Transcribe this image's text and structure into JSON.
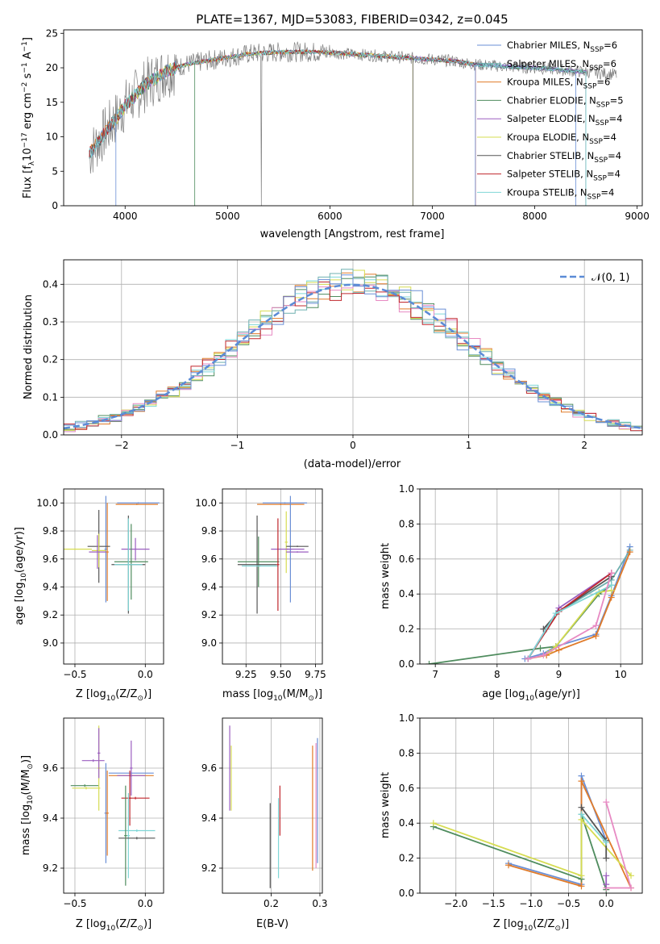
{
  "figure_title": "PLATE=1367, MJD=53083, FIBERID=0342, z=0.045",
  "model_colors": [
    "#6a8fd6",
    "#6fb0b0",
    "#e07b2a",
    "#4f8c5e",
    "#9b5fc0",
    "#d6dc52",
    "#555555",
    "#c0272d",
    "#7fd6d6"
  ],
  "chart_data": [
    {
      "id": "spectrum",
      "type": "line",
      "title": "PLATE=1367, MJD=53083, FIBERID=0342, z=0.045",
      "xlabel": "wavelength [Angstrom, rest frame]",
      "ylabel_text": "Flux [f",
      "ylabel_lambda": "λ",
      "ylabel_unit": "10",
      "ylabel_exp": "−17",
      "ylabel_rest": " erg cm",
      "ylabel_exp2": "−2",
      "ylabel_s": " s",
      "ylabel_exp3": "−1",
      "ylabel_A": " A",
      "ylabel_exp4": "−1",
      "ylabel_close": "]",
      "xlim": [
        3400,
        9050
      ],
      "ylim": [
        0,
        25.5
      ],
      "xticks": [
        4000,
        5000,
        6000,
        7000,
        8000,
        9000
      ],
      "yticks": [
        0,
        5,
        10,
        15,
        20,
        25
      ],
      "legend_position": "upper right",
      "series": [
        {
          "name": "Chabrier MILES, N",
          "sub": "SSP",
          "suffix": "=6"
        },
        {
          "name": "Salpeter MILES, N",
          "sub": "SSP",
          "suffix": "=6"
        },
        {
          "name": "Kroupa MILES, N",
          "sub": "SSP",
          "suffix": "=6"
        },
        {
          "name": "Chabrier ELODIE, N",
          "sub": "SSP",
          "suffix": "=5"
        },
        {
          "name": "Salpeter ELODIE, N",
          "sub": "SSP",
          "suffix": "=4"
        },
        {
          "name": "Kroupa ELODIE, N",
          "sub": "SSP",
          "suffix": "=4"
        },
        {
          "name": "Chabrier STELIB, N",
          "sub": "SSP",
          "suffix": "=4"
        },
        {
          "name": "Salpeter STELIB, N",
          "sub": "SSP",
          "suffix": "=4"
        },
        {
          "name": "Kroupa STELIB, N",
          "sub": "SSP",
          "suffix": "=4"
        }
      ],
      "data_curve_x": [
        3650,
        3700,
        3800,
        3900,
        4000,
        4100,
        4200,
        4300,
        4400,
        4600,
        4800,
        5000,
        5200,
        5400,
        5600,
        5800,
        6000,
        6200,
        6400,
        6600,
        6800,
        7000,
        7200,
        7400,
        7600,
        7800,
        8000,
        8200,
        8400,
        8600,
        8800
      ],
      "data_curve_y": [
        7.5,
        8.5,
        10.5,
        12.5,
        14.5,
        16.0,
        17.5,
        18.5,
        19.5,
        20.5,
        21.0,
        21.5,
        22.0,
        22.2,
        22.3,
        22.3,
        22.2,
        22.0,
        21.8,
        21.6,
        21.4,
        21.2,
        21.0,
        20.5,
        20.3,
        20.1,
        20.0,
        19.8,
        19.5,
        19.3,
        19.0
      ],
      "dropouts": [
        [
          3910,
          0
        ],
        [
          4680,
          0
        ],
        [
          6810,
          0
        ],
        [
          7420,
          0
        ]
      ]
    },
    {
      "id": "residuals",
      "type": "bar",
      "xlabel": "(data-model)/error",
      "ylabel": "Normed distribution",
      "xlim": [
        -2.5,
        2.5
      ],
      "ylim": [
        0,
        0.465
      ],
      "xticks": [
        -2,
        -1,
        0,
        1,
        2
      ],
      "yticks": [
        0.0,
        0.1,
        0.2,
        0.3,
        0.4
      ],
      "legend_position": "upper right",
      "gaussian_label": "𝒩(0, 1)",
      "gaussian_mean": 0,
      "gaussian_sigma": 1,
      "bin_width": 0.1
    },
    {
      "id": "age_vs_Z",
      "type": "scatter",
      "xlabel_main": "Z [log",
      "xlabel_sub": "10",
      "xlabel_rest": "(Z/Z",
      "xlabel_sun": "⊙",
      "xlabel_close": ")]",
      "ylabel_main": "age  [log",
      "ylabel_sub": "10",
      "ylabel_rest": "(age/yr)]",
      "xlim": [
        -0.58,
        0.13
      ],
      "ylim": [
        8.85,
        10.1
      ],
      "xticks": [
        -0.5,
        0.0
      ],
      "yticks": [
        9.0,
        9.2,
        9.4,
        9.6,
        9.8,
        10.0
      ],
      "points": [
        {
          "x": -0.05,
          "xerr": 0.15,
          "y": 10.0,
          "yerr": 0.005,
          "c": 0
        },
        {
          "x": -0.06,
          "xerr": 0.15,
          "y": 9.99,
          "yerr": 0.005,
          "c": 2
        },
        {
          "x": -0.28,
          "xerr": 0.01,
          "y": 9.67,
          "yerr": 0.38,
          "c": 0
        },
        {
          "x": -0.27,
          "xerr": 0.01,
          "y": 9.65,
          "yerr": 0.35,
          "c": 2
        },
        {
          "x": -0.33,
          "xerr": 0.08,
          "y": 9.69,
          "yerr": 0.26,
          "c": 6
        },
        {
          "x": -0.33,
          "xerr": 0.05,
          "y": 9.66,
          "yerr": 0.12,
          "c": 5
        },
        {
          "x": -0.34,
          "xerr": 0.06,
          "y": 9.65,
          "yerr": 0.12,
          "c": 4
        },
        {
          "x": -0.5,
          "xerr": 0.12,
          "y": 9.67,
          "yerr": 0.005,
          "c": 5
        },
        {
          "x": -0.07,
          "xerr": 0.1,
          "y": 9.67,
          "yerr": 0.08,
          "c": 4
        },
        {
          "x": -0.1,
          "xerr": 0.12,
          "y": 9.58,
          "yerr": 0.27,
          "c": 3
        },
        {
          "x": -0.12,
          "xerr": 0.12,
          "y": 9.56,
          "yerr": 0.35,
          "c": 6
        },
        {
          "x": -0.12,
          "xerr": 0.1,
          "y": 9.56,
          "yerr": 0.33,
          "c": 8
        }
      ]
    },
    {
      "id": "age_vs_mass",
      "type": "scatter",
      "xlabel_main": "mass [log",
      "xlabel_sub": "10",
      "xlabel_rest": "(M/M",
      "xlabel_sun": "⊙",
      "xlabel_close": ")]",
      "xlim": [
        9.08,
        9.8
      ],
      "ylim": [
        8.85,
        10.1
      ],
      "xticks": [
        9.25,
        9.5,
        9.75
      ],
      "yticks": [
        9.0,
        9.2,
        9.4,
        9.6,
        9.8,
        10.0
      ],
      "points": [
        {
          "x": 9.53,
          "xerr": 0.16,
          "y": 10.0,
          "yerr": 0.005,
          "c": 0
        },
        {
          "x": 9.5,
          "xerr": 0.17,
          "y": 9.99,
          "yerr": 0.005,
          "c": 2
        },
        {
          "x": 9.57,
          "xerr": 0.01,
          "y": 9.67,
          "yerr": 0.38,
          "c": 0
        },
        {
          "x": 9.54,
          "xerr": 0.01,
          "y": 9.72,
          "yerr": 0.22,
          "c": 5
        },
        {
          "x": 9.62,
          "xerr": 0.08,
          "y": 9.69,
          "yerr": 0.005,
          "c": 6
        },
        {
          "x": 9.62,
          "xerr": 0.08,
          "y": 9.65,
          "yerr": 0.005,
          "c": 4
        },
        {
          "x": 9.55,
          "xerr": 0.12,
          "y": 9.67,
          "yerr": 0.005,
          "c": 4
        },
        {
          "x": 9.34,
          "xerr": 0.15,
          "y": 9.58,
          "yerr": 0.18,
          "c": 3
        },
        {
          "x": 9.33,
          "xerr": 0.14,
          "y": 9.56,
          "yerr": 0.35,
          "c": 6
        },
        {
          "x": 9.35,
          "xerr": 0.13,
          "y": 9.55,
          "yerr": 0.005,
          "c": 8
        },
        {
          "x": 9.48,
          "xerr": 0.01,
          "y": 9.56,
          "yerr": 0.33,
          "c": 7
        }
      ]
    },
    {
      "id": "massweight_vs_age",
      "type": "line",
      "xlabel_main": "age  [log",
      "xlabel_sub": "10",
      "xlabel_rest": "(age/yr)]",
      "ylabel": "mass weight",
      "xlim": [
        6.75,
        10.35
      ],
      "ylim": [
        0,
        1.0
      ],
      "xticks": [
        7,
        8,
        9,
        10
      ],
      "yticks": [
        0.0,
        0.2,
        0.4,
        0.6,
        0.8,
        1.0
      ],
      "series": [
        {
          "c": 0,
          "x": [
            8.45,
            8.75,
            8.95,
            9.6,
            9.85,
            10.15
          ],
          "y": [
            0.03,
            0.06,
            0.1,
            0.17,
            0.39,
            0.67
          ]
        },
        {
          "c": 1,
          "x": [
            8.5,
            8.8,
            9.0,
            9.85,
            10.15
          ],
          "y": [
            0.03,
            0.2,
            0.3,
            0.48,
            0.65
          ]
        },
        {
          "c": 2,
          "x": [
            8.5,
            8.8,
            9.0,
            9.6,
            9.85,
            10.15
          ],
          "y": [
            0.03,
            0.05,
            0.08,
            0.16,
            0.38,
            0.64
          ]
        },
        {
          "c": 3,
          "x": [
            6.9,
            8.7,
            8.95,
            9.65,
            9.85
          ],
          "y": [
            0.0,
            0.09,
            0.1,
            0.4,
            0.45
          ]
        },
        {
          "c": 4,
          "x": [
            8.5,
            9.0,
            9.85
          ],
          "y": [
            0.03,
            0.32,
            0.52
          ]
        },
        {
          "c": 5,
          "x": [
            8.85,
            8.95,
            9.65,
            9.85
          ],
          "y": [
            0.07,
            0.1,
            0.41,
            0.42
          ]
        },
        {
          "c": 6,
          "x": [
            8.75,
            9.0,
            9.85
          ],
          "y": [
            0.2,
            0.3,
            0.5
          ]
        },
        {
          "c": 7,
          "x": [
            8.5,
            9.0,
            9.85
          ],
          "y": [
            0.03,
            0.3,
            0.52
          ]
        },
        {
          "c": 8,
          "x": [
            8.5,
            8.95,
            9.85
          ],
          "y": [
            0.03,
            0.29,
            0.45
          ]
        },
        {
          "c": 9,
          "x": [
            8.5,
            8.75,
            9.6,
            9.85
          ],
          "y": [
            0.03,
            0.05,
            0.22,
            0.52
          ]
        }
      ]
    },
    {
      "id": "mass_vs_Z",
      "type": "scatter",
      "xlabel_main": "Z [log",
      "xlabel_sub": "10",
      "xlabel_rest": "(Z/Z",
      "xlabel_sun": "⊙",
      "xlabel_close": ")]",
      "ylabel_main": "mass [log",
      "ylabel_sub": "10",
      "ylabel_rest": "(M/M",
      "ylabel_sun": "⊙",
      "ylabel_close": ")]",
      "xlim": [
        -0.58,
        0.13
      ],
      "ylim": [
        9.1,
        9.8
      ],
      "xticks": [
        -0.5,
        0.0
      ],
      "yticks": [
        9.2,
        9.4,
        9.6
      ],
      "points": [
        {
          "x": -0.1,
          "xerr": 0.16,
          "y": 9.58,
          "yerr": 0.005,
          "c": 0
        },
        {
          "x": -0.1,
          "xerr": 0.16,
          "y": 9.57,
          "yerr": 0.005,
          "c": 2
        },
        {
          "x": -0.28,
          "xerr": 0.01,
          "y": 9.42,
          "yerr": 0.2,
          "c": 0
        },
        {
          "x": -0.27,
          "xerr": 0.01,
          "y": 9.42,
          "yerr": 0.17,
          "c": 2
        },
        {
          "x": -0.43,
          "xerr": 0.1,
          "y": 9.53,
          "yerr": 0.005,
          "c": 3
        },
        {
          "x": -0.42,
          "xerr": 0.1,
          "y": 9.52,
          "yerr": 0.005,
          "c": 5
        },
        {
          "x": -0.37,
          "xerr": 0.08,
          "y": 9.63,
          "yerr": 0.005,
          "c": 4
        },
        {
          "x": -0.33,
          "xerr": 0.01,
          "y": 9.6,
          "yerr": 0.17,
          "c": 5
        },
        {
          "x": -0.33,
          "xerr": 0.01,
          "y": 9.66,
          "yerr": 0.1,
          "c": 4
        },
        {
          "x": -0.1,
          "xerr": 0.1,
          "y": 9.57,
          "yerr": 0.005,
          "c": 4
        },
        {
          "x": -0.1,
          "xerr": 0.01,
          "y": 9.6,
          "yerr": 0.11,
          "c": 4
        },
        {
          "x": -0.07,
          "xerr": 0.1,
          "y": 9.48,
          "yerr": 0.005,
          "c": 7
        },
        {
          "x": -0.11,
          "xerr": 0.01,
          "y": 9.48,
          "yerr": 0.11,
          "c": 7
        },
        {
          "x": -0.06,
          "xerr": 0.13,
          "y": 9.35,
          "yerr": 0.005,
          "c": 8
        },
        {
          "x": -0.12,
          "xerr": 0.01,
          "y": 9.33,
          "yerr": 0.17,
          "c": 8
        },
        {
          "x": -0.06,
          "xerr": 0.13,
          "y": 9.32,
          "yerr": 0.005,
          "c": 6
        },
        {
          "x": -0.14,
          "xerr": 0.01,
          "y": 9.33,
          "yerr": 0.2,
          "c": 3
        }
      ]
    },
    {
      "id": "mass_vs_ebv",
      "type": "scatter",
      "xlabel": "E(B-V)",
      "xlim": [
        0.1,
        0.305
      ],
      "ylim": [
        9.1,
        9.8
      ],
      "xticks": [
        0.2,
        0.3
      ],
      "yticks": [
        9.2,
        9.4,
        9.6
      ],
      "points": [
        {
          "x": 0.115,
          "yerr": 0.17,
          "y": 9.6,
          "c": 4
        },
        {
          "x": 0.118,
          "yerr": 0.13,
          "y": 9.56,
          "c": 5
        },
        {
          "x": 0.198,
          "yerr": 0.17,
          "y": 9.29,
          "c": 6
        },
        {
          "x": 0.215,
          "yerr": 0.16,
          "y": 9.32,
          "c": 8
        },
        {
          "x": 0.218,
          "yerr": 0.1,
          "y": 9.43,
          "c": 7
        },
        {
          "x": 0.285,
          "yerr": 0.25,
          "y": 9.44,
          "c": 2
        },
        {
          "x": 0.292,
          "yerr": 0.25,
          "y": 9.45,
          "c": 9
        },
        {
          "x": 0.295,
          "yerr": 0.25,
          "y": 9.47,
          "c": 0
        }
      ]
    },
    {
      "id": "massweight_vs_Z",
      "type": "line",
      "xlabel_main": "Z [log",
      "xlabel_sub": "10",
      "xlabel_rest": "(Z/Z",
      "xlabel_sun": "⊙",
      "xlabel_close": ")]",
      "ylabel": "mass weight",
      "xlim": [
        -2.48,
        0.48
      ],
      "ylim": [
        0,
        1.0
      ],
      "xticks": [
        -2.0,
        -1.5,
        -1.0,
        -0.5,
        0.0
      ],
      "yticks": [
        0.0,
        0.2,
        0.4,
        0.6,
        0.8,
        1.0
      ],
      "series": [
        {
          "c": 0,
          "x": [
            -1.3,
            -0.33,
            -0.33,
            0.0
          ],
          "y": [
            0.17,
            0.05,
            0.67,
            0.3
          ]
        },
        {
          "c": 2,
          "x": [
            -1.3,
            -0.33,
            -0.33,
            0.33
          ],
          "y": [
            0.16,
            0.04,
            0.64,
            0.03
          ]
        },
        {
          "c": 3,
          "x": [
            -2.3,
            -0.33,
            -0.33,
            0.0
          ],
          "y": [
            0.38,
            0.08,
            0.45,
            0.02
          ]
        },
        {
          "c": 5,
          "x": [
            -2.3,
            -0.33,
            -0.33,
            0.33
          ],
          "y": [
            0.4,
            0.1,
            0.42,
            0.1
          ]
        },
        {
          "c": 6,
          "x": [
            -0.33,
            0.0,
            0.0
          ],
          "y": [
            0.49,
            0.3,
            0.2
          ]
        },
        {
          "c": 8,
          "x": [
            -0.33,
            0.0
          ],
          "y": [
            0.45,
            0.29
          ]
        },
        {
          "c": 9,
          "x": [
            0.0,
            0.33,
            0.0
          ],
          "y": [
            0.52,
            0.03,
            0.03
          ]
        },
        {
          "c": 4,
          "x": [
            0.0,
            0.0
          ],
          "y": [
            0.1,
            0.05
          ]
        }
      ]
    }
  ]
}
